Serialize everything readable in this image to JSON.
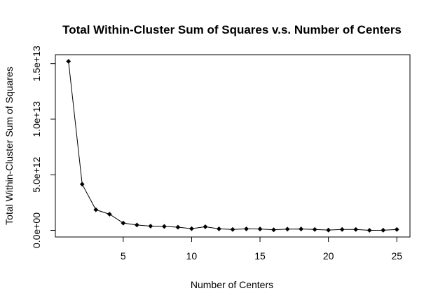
{
  "chart_data": {
    "type": "line",
    "title": "Total Within-Cluster Sum of Squares v.s. Number of Centers",
    "xlabel": "Number of Centers",
    "ylabel": "Total Within-Cluster Sum of Squares",
    "xlim": [
      0.04,
      25.96
    ],
    "ylim": [
      -600000000000.0,
      15800000000000.0
    ],
    "x_ticks": [
      5,
      10,
      15,
      20,
      25
    ],
    "x_tick_labels": [
      "5",
      "10",
      "15",
      "20",
      "25"
    ],
    "y_ticks": [
      0,
      5000000000000.0,
      10000000000000.0,
      15000000000000.0
    ],
    "y_tick_labels": [
      "0.0e+00",
      "5.0e+12",
      "1.0e+13",
      "1.5e+13"
    ],
    "grid": false,
    "marker": "filled-diamond",
    "series": [
      {
        "x": [
          1,
          2,
          3,
          4,
          5,
          6,
          7,
          8,
          9,
          10,
          11,
          12,
          13,
          14,
          15,
          16,
          17,
          18,
          19,
          20,
          21,
          22,
          23,
          24,
          25
        ],
        "values": [
          15200000000000.0,
          4150000000000.0,
          1850000000000.0,
          1450000000000.0,
          650000000000.0,
          480000000000.0,
          380000000000.0,
          350000000000.0,
          280000000000.0,
          150000000000.0,
          320000000000.0,
          130000000000.0,
          80000000000.0,
          130000000000.0,
          120000000000.0,
          50000000000.0,
          110000000000.0,
          120000000000.0,
          80000000000.0,
          20000000000.0,
          80000000000.0,
          80000000000.0,
          0.0,
          10000000000.0,
          80000000000.0
        ]
      }
    ]
  }
}
